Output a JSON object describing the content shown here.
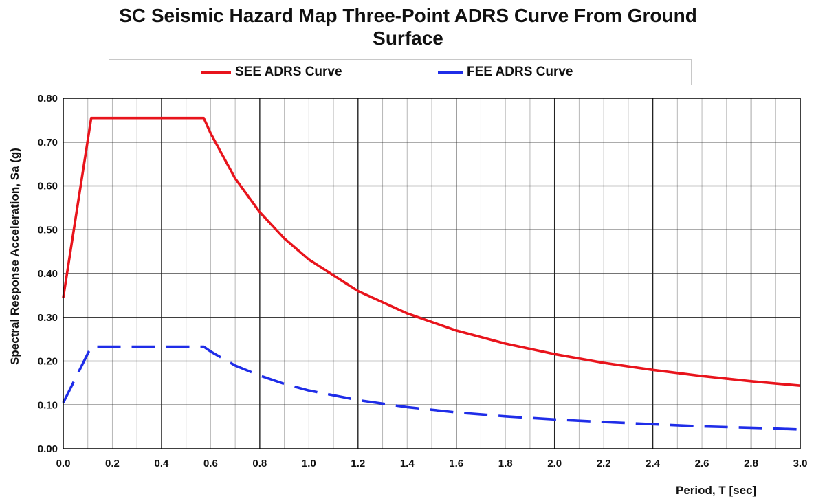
{
  "chart_data": {
    "type": "line",
    "title_lines": [
      "SC Seismic Hazard Map Three-Point ADRS Curve From Ground",
      "Surface"
    ],
    "xlabel": "Period, T [sec]",
    "ylabel": "Spectral Response Acceleration, Sa (g)",
    "xlim": [
      0,
      3
    ],
    "ylim": [
      0,
      0.8
    ],
    "x_ticks": [
      "0.0",
      "0.2",
      "0.4",
      "0.6",
      "0.8",
      "1.0",
      "1.2",
      "1.4",
      "1.6",
      "1.8",
      "2.0",
      "2.2",
      "2.4",
      "2.6",
      "2.8",
      "3.0"
    ],
    "y_ticks": [
      "0.00",
      "0.10",
      "0.20",
      "0.30",
      "0.40",
      "0.50",
      "0.60",
      "0.70",
      "0.80"
    ],
    "grid": true,
    "legend": "top",
    "series": [
      {
        "name": "SEE ADRS Curve",
        "color": "#e8141c",
        "style": "solid",
        "x": [
          0,
          0.114,
          0.572,
          0.6,
          0.7,
          0.8,
          0.9,
          1.0,
          1.2,
          1.4,
          1.6,
          1.8,
          2.0,
          2.2,
          2.4,
          2.6,
          2.8,
          3.0
        ],
        "y": [
          0.345,
          0.755,
          0.755,
          0.72,
          0.617,
          0.54,
          0.48,
          0.432,
          0.36,
          0.309,
          0.27,
          0.24,
          0.216,
          0.196,
          0.18,
          0.166,
          0.154,
          0.144
        ]
      },
      {
        "name": "FEE ADRS Curve",
        "color": "#1f2de8",
        "style": "dashed",
        "x": [
          0,
          0.114,
          0.572,
          0.6,
          0.7,
          0.8,
          0.9,
          1.0,
          1.2,
          1.4,
          1.6,
          1.8,
          2.0,
          2.2,
          2.4,
          2.6,
          2.8,
          3.0
        ],
        "y": [
          0.105,
          0.233,
          0.233,
          0.222,
          0.19,
          0.167,
          0.148,
          0.133,
          0.111,
          0.095,
          0.083,
          0.074,
          0.067,
          0.061,
          0.056,
          0.051,
          0.048,
          0.044
        ]
      }
    ]
  }
}
